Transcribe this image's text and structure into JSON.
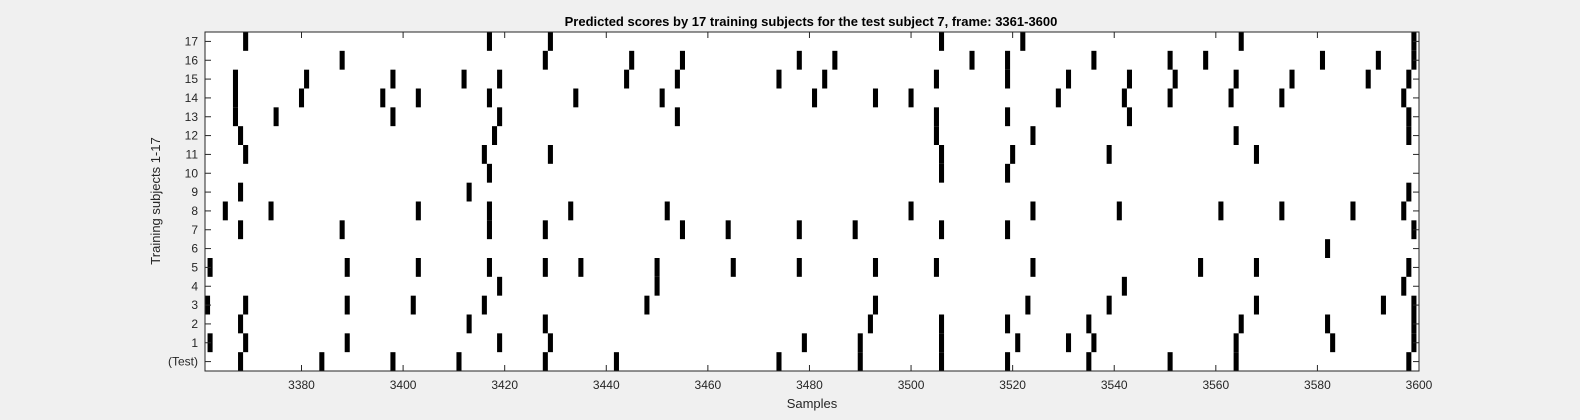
{
  "chart_data": {
    "type": "raster",
    "title": "Predicted scores by 17 training subjects for the test subject 7, frame: 3361-3600",
    "xlabel": "Samples",
    "ylabel": "Training subjects 1-17",
    "xlim": [
      3361,
      3600
    ],
    "xticks": [
      3380,
      3400,
      3420,
      3440,
      3460,
      3480,
      3500,
      3520,
      3540,
      3560,
      3580,
      3600
    ],
    "rows": [
      "(Test)",
      "1",
      "2",
      "3",
      "4",
      "5",
      "6",
      "7",
      "8",
      "9",
      "10",
      "11",
      "12",
      "13",
      "14",
      "15",
      "16",
      "17"
    ],
    "grid": false,
    "colors": {
      "background": "#ffffff",
      "mark": "#000000",
      "figure": "#f0f0f0"
    },
    "events": [
      {
        "row": "(Test)",
        "x": [
          3368,
          3384,
          3398,
          3411,
          3428,
          3442,
          3474,
          3490,
          3506,
          3519,
          3535,
          3551,
          3564,
          3598
        ]
      },
      {
        "row": "1",
        "x": [
          3362,
          3369,
          3389,
          3419,
          3429,
          3479,
          3490,
          3506,
          3521,
          3531,
          3536,
          3564,
          3583,
          3599
        ]
      },
      {
        "row": "2",
        "x": [
          3368,
          3413,
          3428,
          3492,
          3506,
          3519,
          3535,
          3565,
          3582,
          3599
        ]
      },
      {
        "row": "3",
        "x": [
          3361,
          3369,
          3389,
          3402,
          3416,
          3448,
          3493,
          3523,
          3539,
          3568,
          3593,
          3599
        ]
      },
      {
        "row": "4",
        "x": [
          3419,
          3450,
          3542,
          3597
        ]
      },
      {
        "row": "5",
        "x": [
          3362,
          3389,
          3403,
          3417,
          3428,
          3435,
          3450,
          3465,
          3478,
          3493,
          3505,
          3524,
          3557,
          3568,
          3598
        ]
      },
      {
        "row": "6",
        "x": [
          3582
        ]
      },
      {
        "row": "7",
        "x": [
          3368,
          3388,
          3417,
          3428,
          3455,
          3464,
          3478,
          3489,
          3506,
          3519,
          3599
        ]
      },
      {
        "row": "8",
        "x": [
          3365,
          3374,
          3403,
          3417,
          3433,
          3452,
          3500,
          3524,
          3541,
          3561,
          3573,
          3587,
          3597
        ]
      },
      {
        "row": "9",
        "x": [
          3368,
          3413,
          3598
        ]
      },
      {
        "row": "10",
        "x": [
          3417,
          3506,
          3519
        ]
      },
      {
        "row": "11",
        "x": [
          3369,
          3416,
          3429,
          3506,
          3520,
          3539,
          3568
        ]
      },
      {
        "row": "12",
        "x": [
          3368,
          3418,
          3505,
          3524,
          3564,
          3598
        ]
      },
      {
        "row": "13",
        "x": [
          3367,
          3375,
          3398,
          3419,
          3454,
          3505,
          3519,
          3543,
          3598
        ]
      },
      {
        "row": "14",
        "x": [
          3367,
          3380,
          3396,
          3403,
          3417,
          3434,
          3451,
          3481,
          3493,
          3500,
          3529,
          3542,
          3551,
          3563,
          3573,
          3597
        ]
      },
      {
        "row": "15",
        "x": [
          3367,
          3381,
          3398,
          3412,
          3419,
          3444,
          3454,
          3474,
          3483,
          3505,
          3519,
          3531,
          3543,
          3552,
          3564,
          3575,
          3590,
          3598
        ]
      },
      {
        "row": "16",
        "x": [
          3388,
          3428,
          3445,
          3455,
          3478,
          3485,
          3512,
          3519,
          3536,
          3551,
          3558,
          3581,
          3592,
          3599
        ]
      },
      {
        "row": "17",
        "x": [
          3369,
          3417,
          3429,
          3506,
          3522,
          3565,
          3599
        ]
      }
    ]
  }
}
